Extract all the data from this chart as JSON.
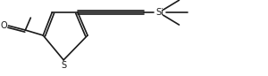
{
  "bg_color": "#ffffff",
  "line_color": "#1a1a1a",
  "line_width": 1.2,
  "figsize": [
    3.0,
    0.86
  ],
  "dpi": 100,
  "Si_label": "Si",
  "S_label": "S",
  "O_label": "O"
}
